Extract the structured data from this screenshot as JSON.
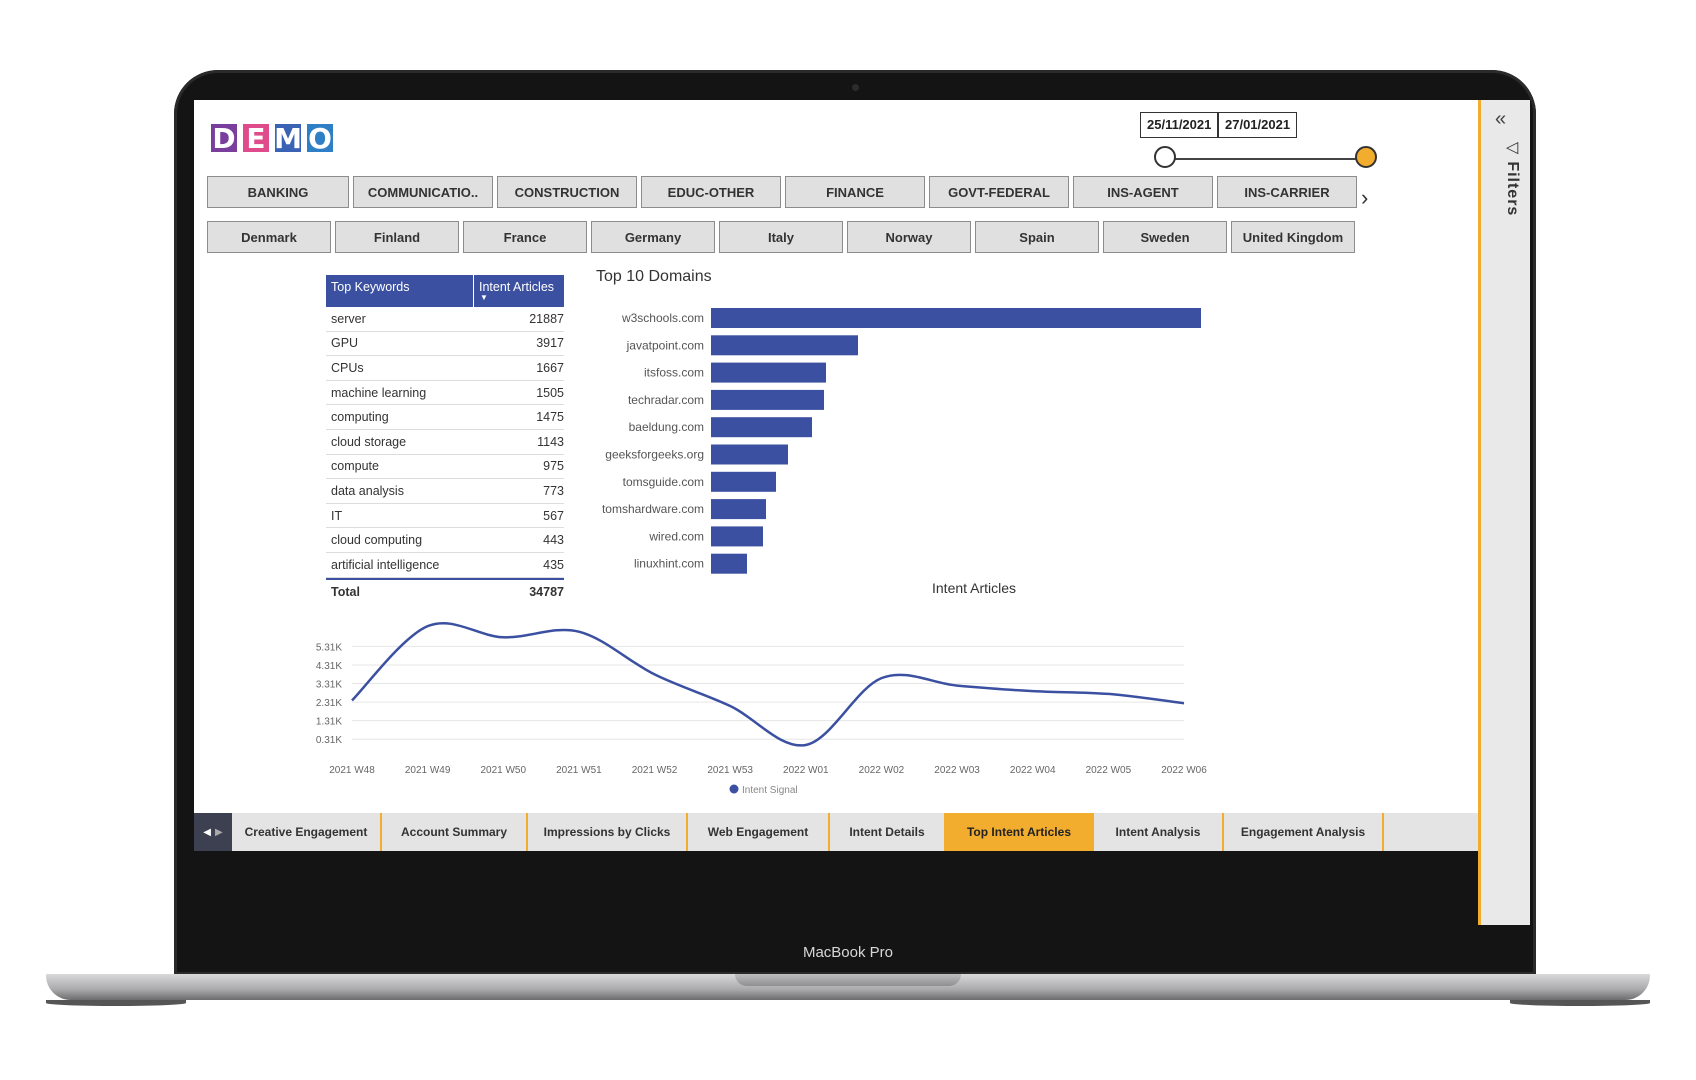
{
  "device": {
    "model_label": "MacBook Pro"
  },
  "logo": {
    "letters": [
      "D",
      "E",
      "M",
      "O"
    ],
    "colors": [
      "#7a3e9c",
      "#e04b8b",
      "#3a63b5",
      "#2f7fc6"
    ]
  },
  "date_range": {
    "start": "25/11/2021",
    "end": "27/01/2021",
    "accent": "#f2ad2f"
  },
  "industry_slicer": [
    "BANKING",
    "COMMUNICATIO..",
    "CONSTRUCTION",
    "EDUC-OTHER",
    "FINANCE",
    "GOVT-FEDERAL",
    "INS-AGENT",
    "INS-CARRIER"
  ],
  "country_slicer": [
    "Denmark",
    "Finland",
    "France",
    "Germany",
    "Italy",
    "Norway",
    "Spain",
    "Sweden",
    "United Kingdom"
  ],
  "keywords_table": {
    "headers": [
      "Top Keywords",
      "Intent Articles"
    ],
    "rows": [
      {
        "k": "server",
        "v": "21887"
      },
      {
        "k": "GPU",
        "v": "3917"
      },
      {
        "k": "CPUs",
        "v": "1667"
      },
      {
        "k": "machine learning",
        "v": "1505"
      },
      {
        "k": "computing",
        "v": "1475"
      },
      {
        "k": "cloud storage",
        "v": "1143"
      },
      {
        "k": "compute",
        "v": "975"
      },
      {
        "k": "data analysis",
        "v": "773"
      },
      {
        "k": "IT",
        "v": "567"
      },
      {
        "k": "cloud computing",
        "v": "443"
      },
      {
        "k": "artificial intelligence",
        "v": "435"
      }
    ],
    "total_label": "Total",
    "total_value": "34787"
  },
  "chart_data": [
    {
      "type": "bar",
      "orientation": "horizontal",
      "title": "Top 10 Domains",
      "xlabel": "Intent Articles",
      "categories": [
        "w3schools.com",
        "javatpoint.com",
        "itsfoss.com",
        "techradar.com",
        "baeldung.com",
        "geeksforgeeks.org",
        "tomsguide.com",
        "tomshardware.com",
        "wired.com",
        "linuxhint.com"
      ],
      "values": [
        4900,
        1470,
        1150,
        1130,
        1010,
        770,
        650,
        550,
        520,
        360
      ],
      "color": "#3b50a1"
    },
    {
      "type": "line",
      "title": "",
      "x": [
        "2021 W48",
        "2021 W49",
        "2021 W50",
        "2021 W51",
        "2021 W52",
        "2021 W53",
        "2022 W01",
        "2022 W02",
        "2022 W03",
        "2022 W04",
        "2022 W05",
        "2022 W06"
      ],
      "series": [
        {
          "name": "Intent Signal",
          "values": [
            2400,
            6400,
            5800,
            6100,
            3800,
            2100,
            0.4,
            3600,
            3200,
            2900,
            2750,
            2250
          ]
        }
      ],
      "ytick_labels": [
        "0.31K",
        "1.31K",
        "2.31K",
        "3.31K",
        "4.31K",
        "5.31K"
      ],
      "ytick_values": [
        310,
        1310,
        2310,
        3310,
        4310,
        5310
      ],
      "ylim": [
        0,
        7000
      ],
      "color": "#3b50a1",
      "legend": "bottom-center"
    }
  ],
  "page_tabs": {
    "items": [
      "Creative Engagement",
      "Account Summary",
      "Impressions by Clicks",
      "Web Engagement",
      "Intent Details",
      "Top Intent Articles",
      "Intent Analysis",
      "Engagement Analysis"
    ],
    "active": "Top Intent Articles"
  },
  "filters_pane": {
    "title": "Filters"
  }
}
